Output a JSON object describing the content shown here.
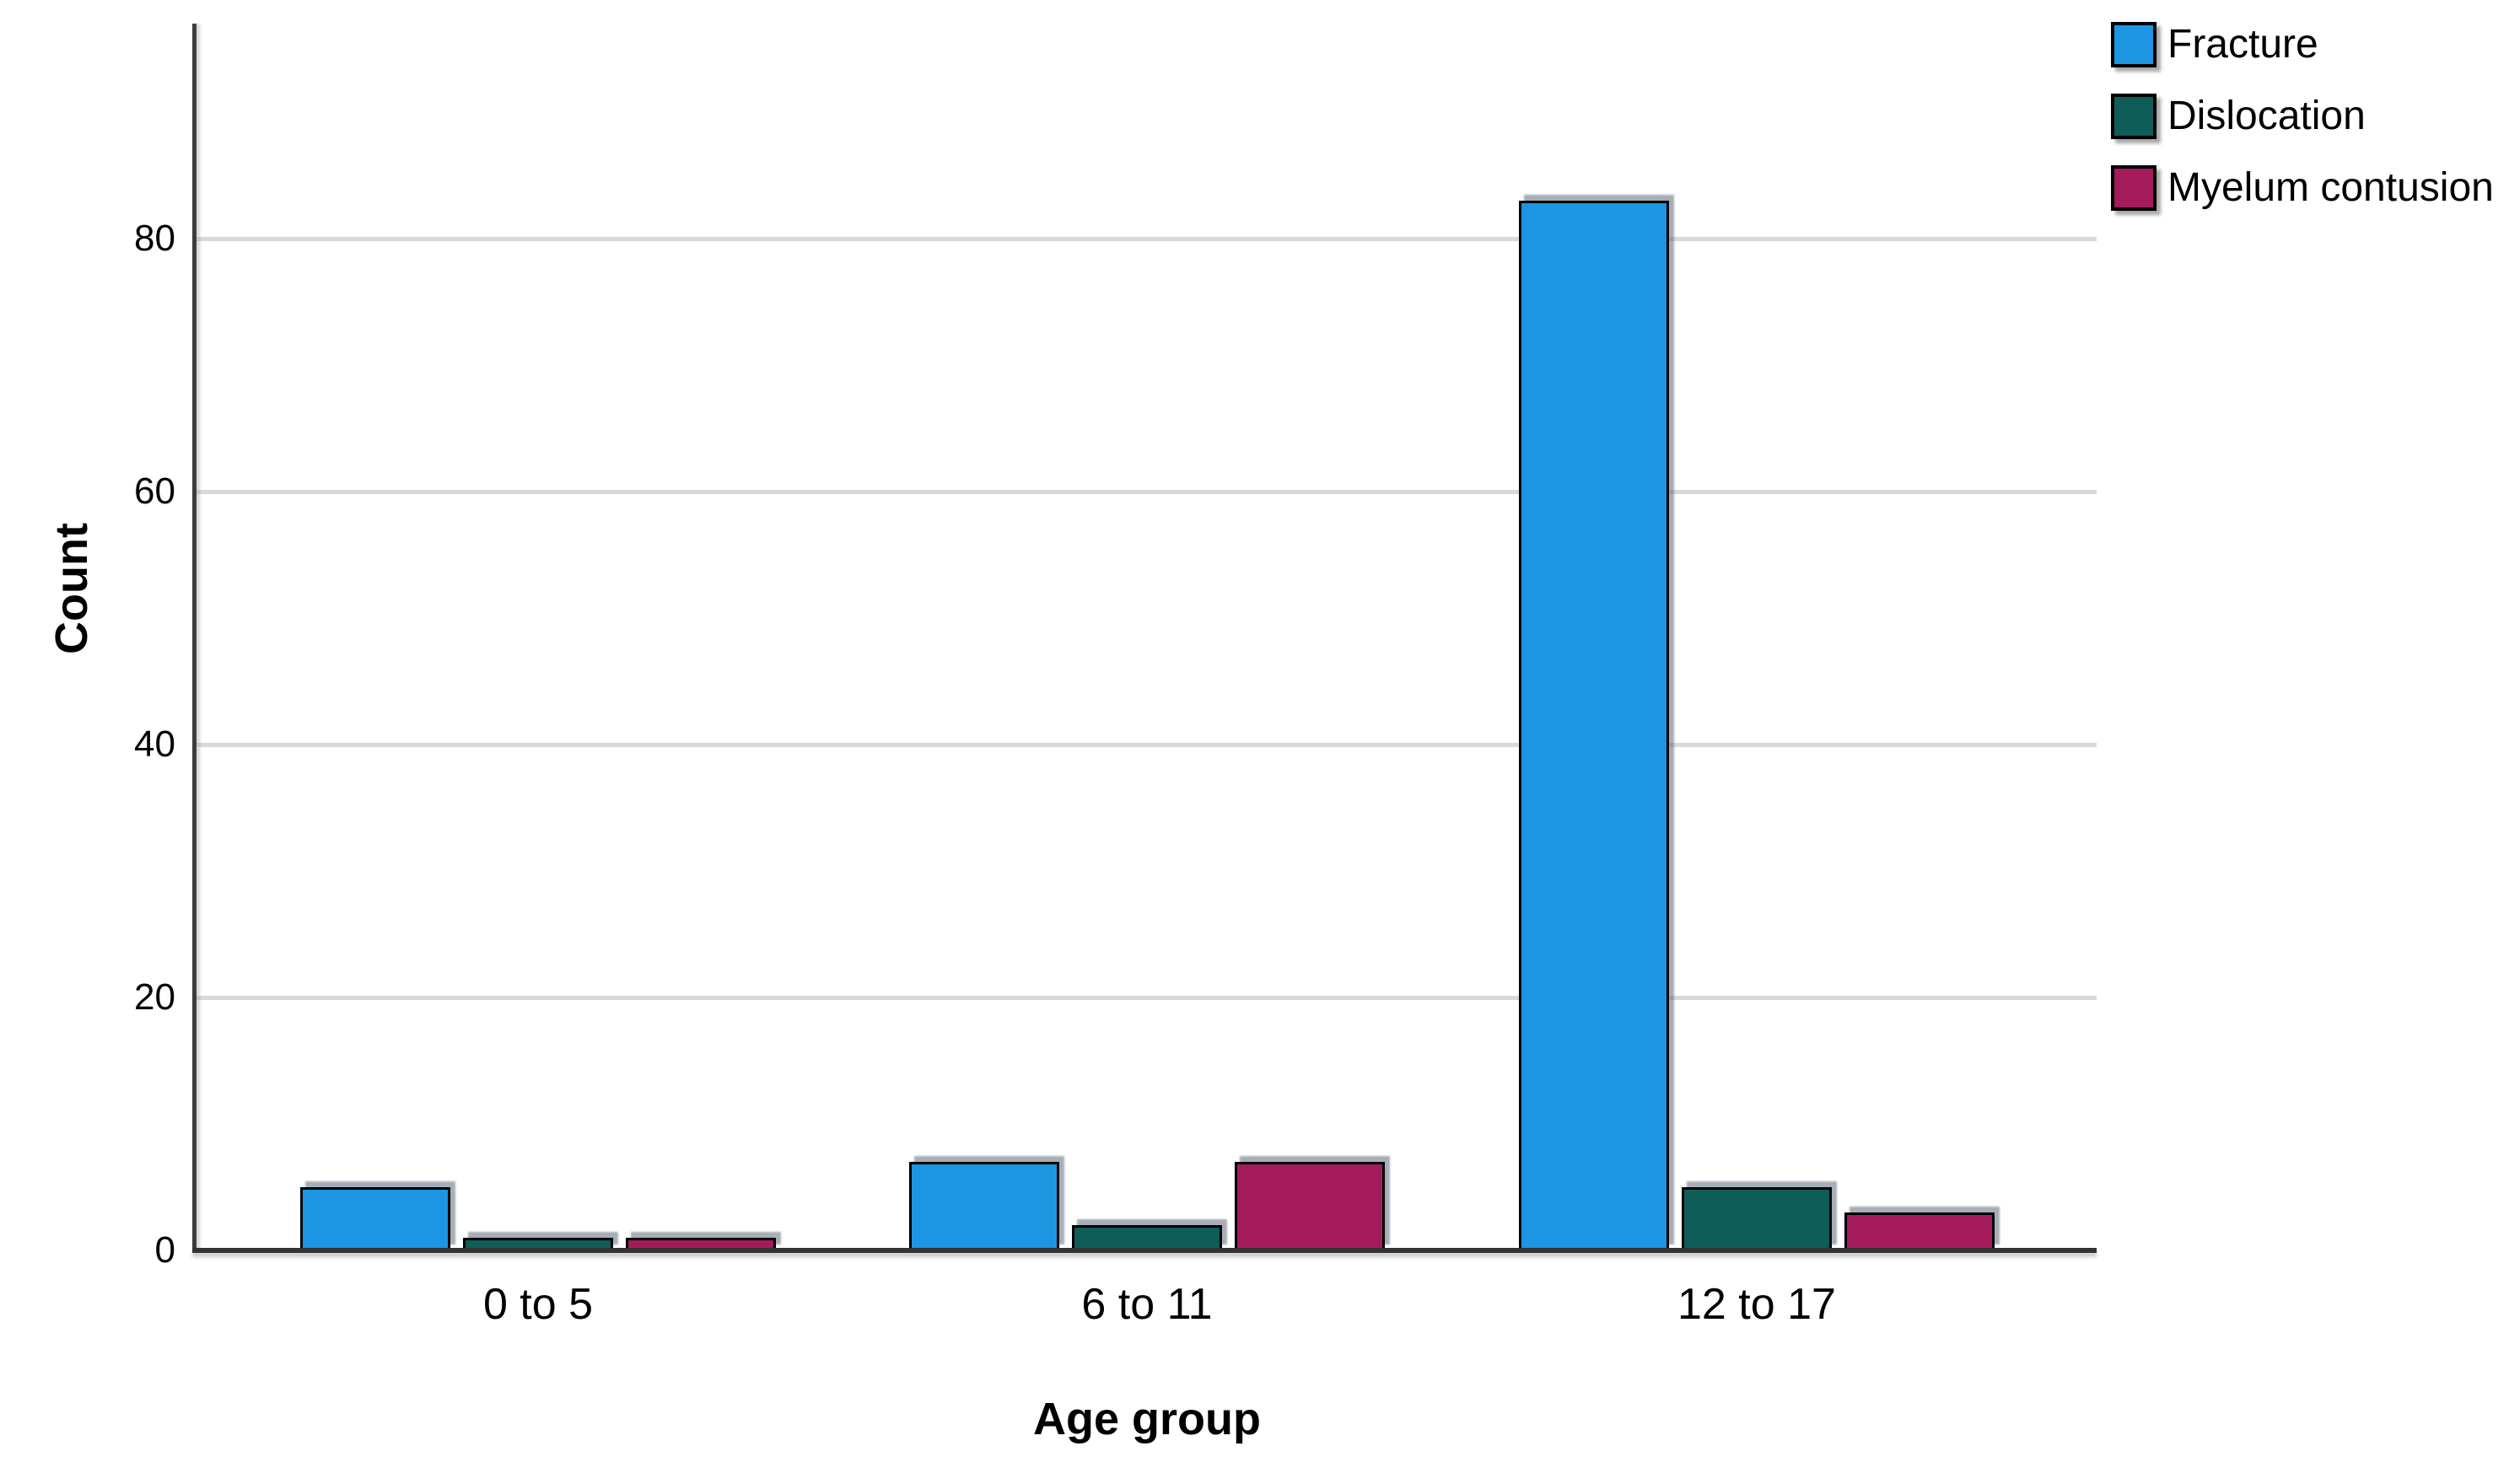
{
  "chart_data": {
    "type": "bar",
    "title": "",
    "xlabel": "Age group",
    "ylabel": "Count",
    "categories": [
      "0 to 5",
      "6 to 11",
      "12 to 17"
    ],
    "series": [
      {
        "name": "Fracture",
        "color": "#1C95E3",
        "values": [
          5,
          7,
          83
        ]
      },
      {
        "name": "Dislocation",
        "color": "#0E5D59",
        "values": [
          1,
          2,
          5
        ]
      },
      {
        "name": "Myelum contusion",
        "color": "#A31B5C",
        "values": [
          1,
          7,
          3
        ]
      }
    ],
    "yticks": [
      0,
      20,
      40,
      60,
      80
    ],
    "ylim": [
      0,
      96.9
    ],
    "grid": true,
    "legend_position": "top-right",
    "colors": {
      "background": "#FFFFFF",
      "gridline": "#D8D8D8",
      "axis_line": "#3C3C3C",
      "text": "#000000"
    }
  }
}
